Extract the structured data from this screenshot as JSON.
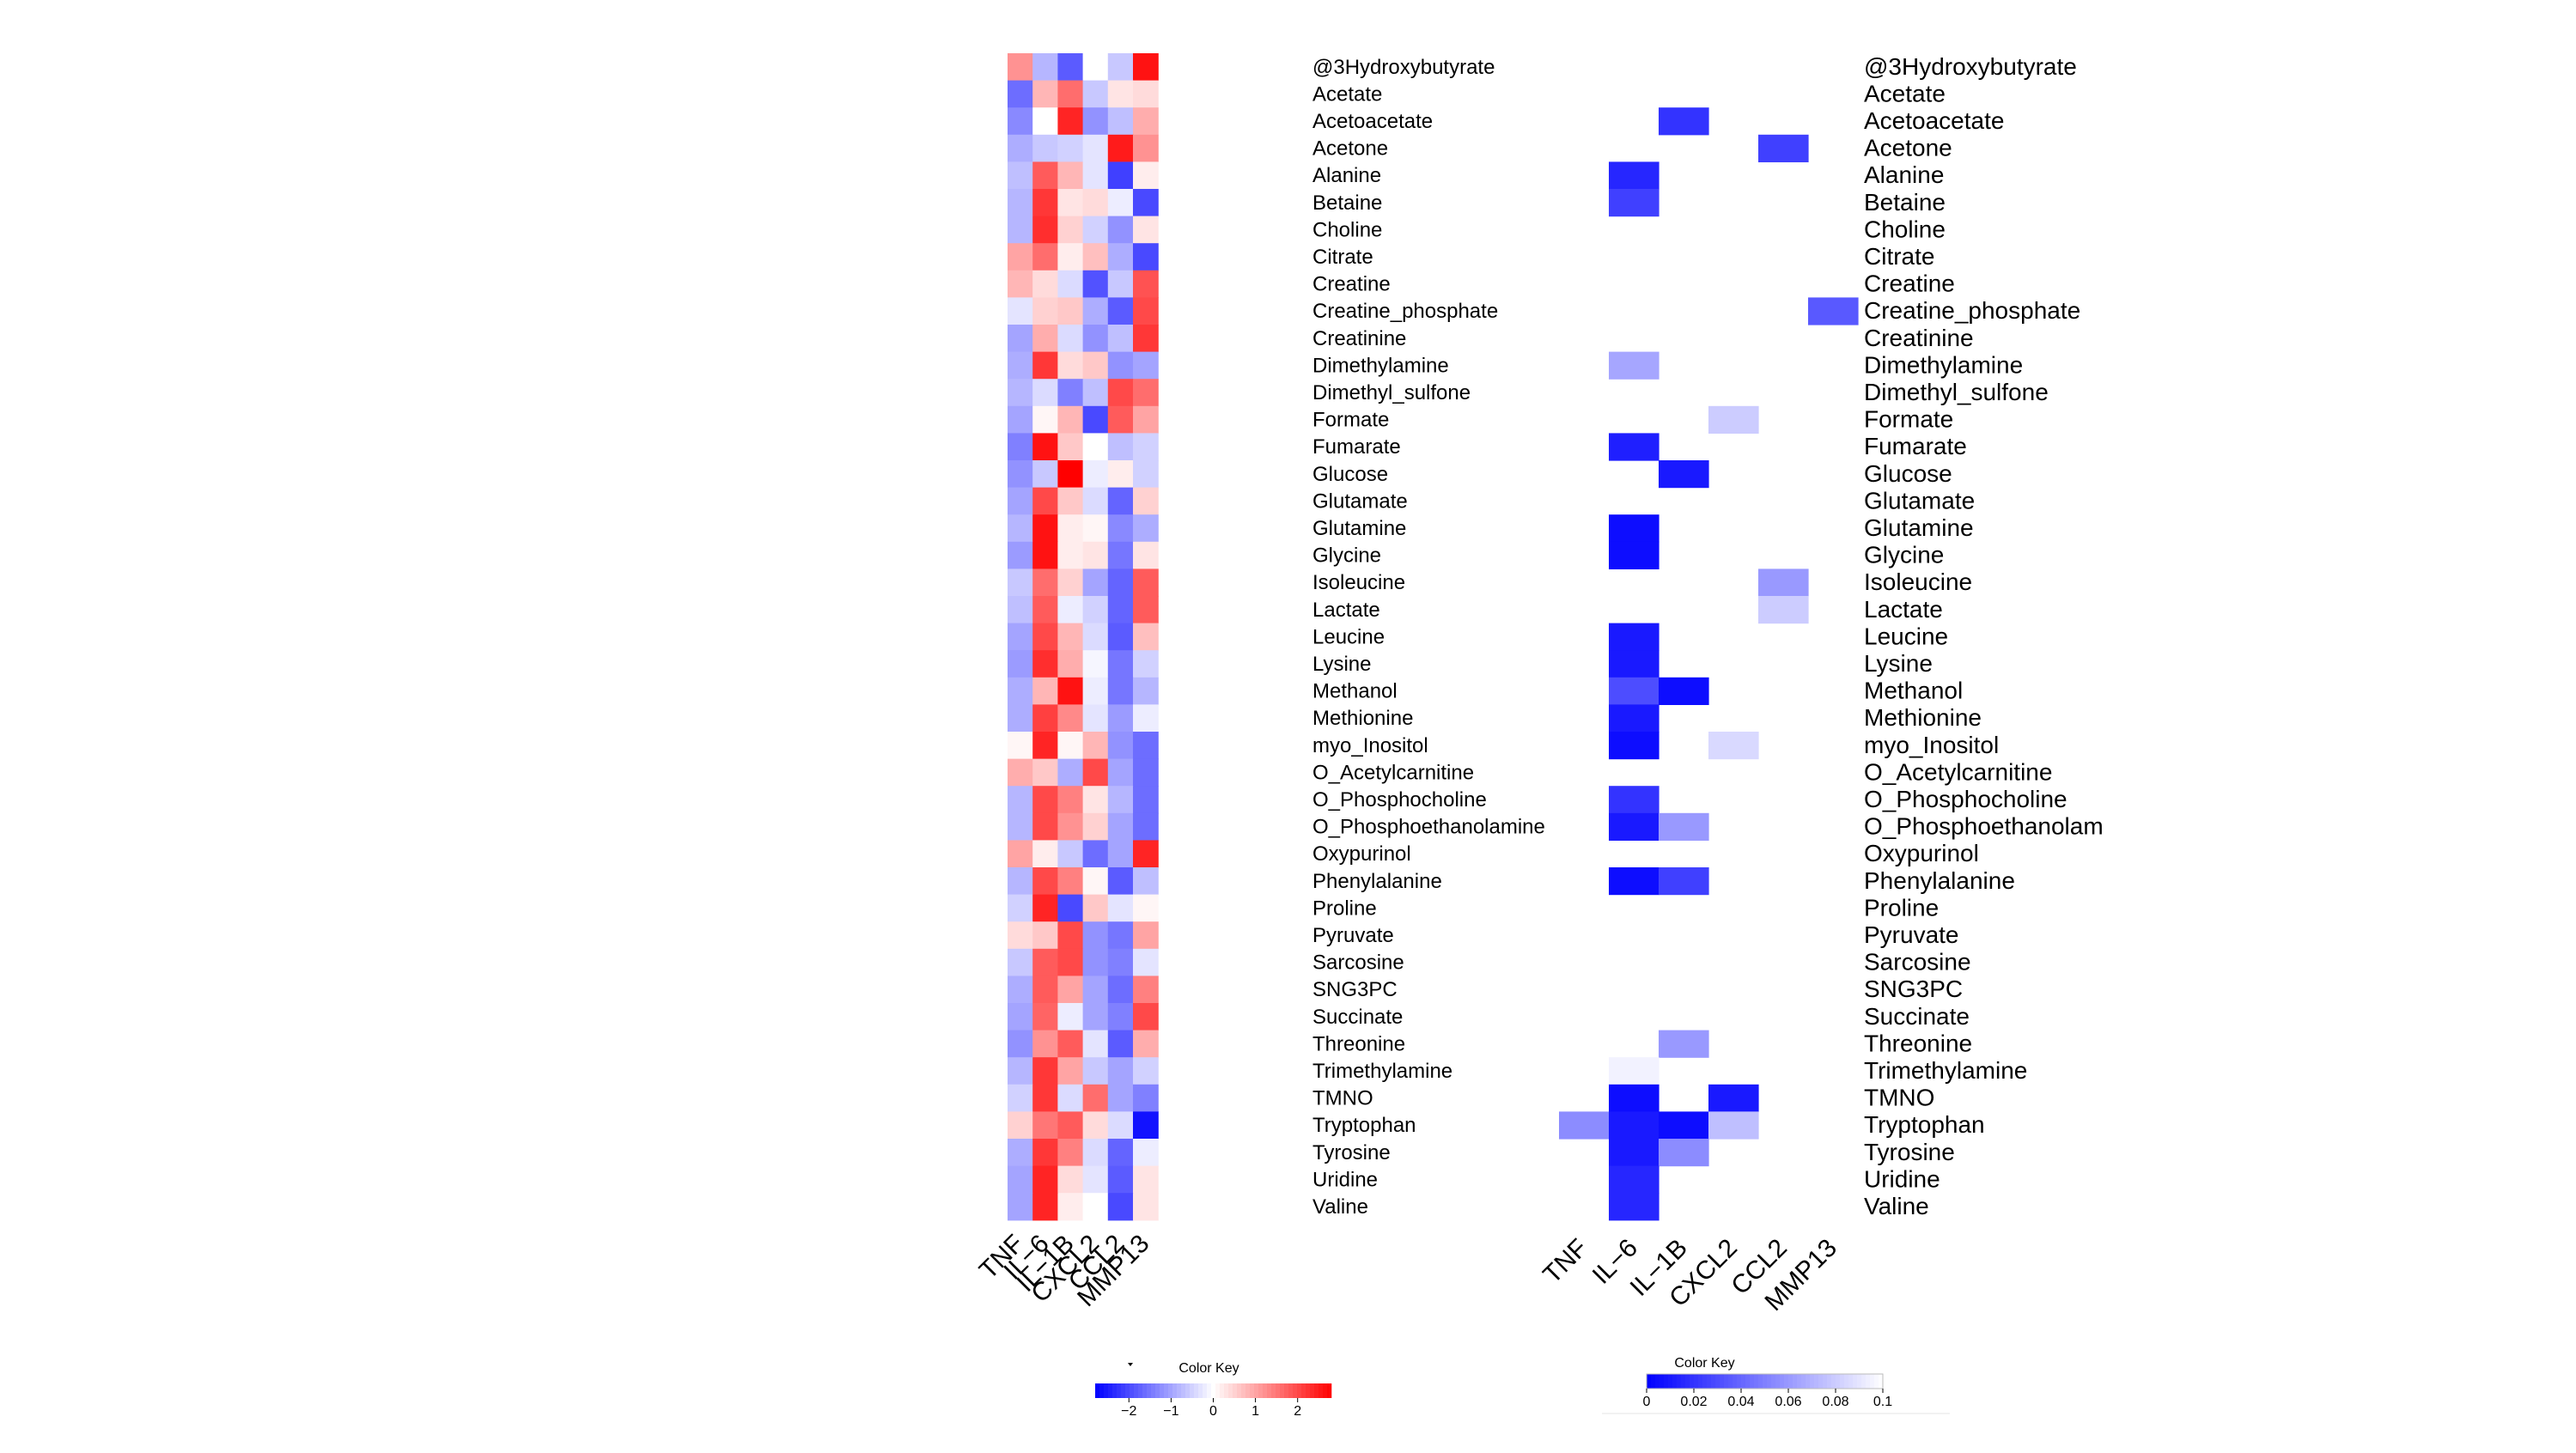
{
  "chart_data": [
    {
      "type": "heatmap",
      "columns": [
        "TNF",
        "IL−6",
        "IL−1B",
        "CXCL2",
        "CCL2",
        "MMP13"
      ],
      "rows": [
        "@3Hydroxybutyrate",
        "Acetate",
        "Acetoacetate",
        "Acetone",
        "Alanine",
        "Betaine",
        "Choline",
        "Citrate",
        "Creatine",
        "Creatine_phosphate",
        "Creatinine",
        "Dimethylamine",
        "Dimethyl_sulfone",
        "Formate",
        "Fumarate",
        "Glucose",
        "Glutamate",
        "Glutamine",
        "Glycine",
        "Isoleucine",
        "Lactate",
        "Leucine",
        "Lysine",
        "Methanol",
        "Methionine",
        "myo_Inositol",
        "O_Acetylcarnitine",
        "O_Phosphocholine",
        "O_Phosphoethanolamine",
        "Oxypurinol",
        "Phenylalanine",
        "Proline",
        "Pyruvate",
        "Sarcosine",
        "SNG3PC",
        "Succinate",
        "Threonine",
        "Trimethylamine",
        "TMNO",
        "Tryptophan",
        "Tyrosine",
        "Uridine",
        "Valine"
      ],
      "values": [
        [
          1.2,
          -0.8,
          -1.8,
          0.0,
          -0.6,
          2.6
        ],
        [
          -1.6,
          0.8,
          1.6,
          -0.6,
          0.3,
          0.4
        ],
        [
          -1.3,
          0.0,
          2.4,
          -1.2,
          -0.7,
          0.9
        ],
        [
          -0.9,
          -0.6,
          -0.5,
          -0.3,
          2.5,
          1.2
        ],
        [
          -0.7,
          1.8,
          0.8,
          -0.3,
          -2.1,
          0.2
        ],
        [
          -0.8,
          2.2,
          0.3,
          0.4,
          -0.2,
          -2.0
        ],
        [
          -0.8,
          2.3,
          0.5,
          -0.5,
          -1.2,
          0.3
        ],
        [
          1.0,
          1.6,
          0.2,
          0.7,
          -0.9,
          -2.0
        ],
        [
          0.8,
          0.4,
          -0.4,
          -1.9,
          -0.6,
          1.9
        ],
        [
          -0.3,
          0.5,
          0.6,
          -0.9,
          -1.8,
          2.0
        ],
        [
          -1.0,
          0.9,
          -0.4,
          -1.2,
          -0.7,
          2.2
        ],
        [
          -0.9,
          2.2,
          0.4,
          0.6,
          -1.2,
          -1.0
        ],
        [
          -0.8,
          -0.4,
          -1.4,
          -0.7,
          2.0,
          1.6
        ],
        [
          -1.0,
          0.1,
          0.8,
          -2.0,
          1.8,
          1.0
        ],
        [
          -1.4,
          2.6,
          0.6,
          0.0,
          -0.7,
          -0.5
        ],
        [
          -1.2,
          -0.6,
          2.8,
          -0.2,
          0.2,
          -0.5
        ],
        [
          -1.0,
          2.0,
          0.6,
          -0.4,
          -1.7,
          0.5
        ],
        [
          -0.8,
          2.6,
          0.2,
          0.1,
          -1.3,
          -0.9
        ],
        [
          -1.1,
          2.6,
          0.2,
          0.3,
          -1.5,
          0.3
        ],
        [
          -0.6,
          1.6,
          0.5,
          -1.0,
          -1.7,
          1.8
        ],
        [
          -0.7,
          1.8,
          -0.2,
          -0.5,
          -1.7,
          1.8
        ],
        [
          -1.0,
          2.0,
          0.8,
          -0.4,
          -1.8,
          0.7
        ],
        [
          -1.1,
          2.3,
          0.9,
          -0.1,
          -1.5,
          -0.5
        ],
        [
          -0.9,
          0.8,
          2.6,
          -0.2,
          -1.5,
          -0.8
        ],
        [
          -0.9,
          2.1,
          1.3,
          -0.3,
          -1.1,
          -0.2
        ],
        [
          0.1,
          2.4,
          0.1,
          0.8,
          -1.2,
          -1.6
        ],
        [
          0.9,
          0.6,
          -0.9,
          2.0,
          -1.0,
          -1.6
        ],
        [
          -0.8,
          2.0,
          1.4,
          0.3,
          -0.8,
          -1.6
        ],
        [
          -0.8,
          2.0,
          1.2,
          0.5,
          -1.0,
          -1.6
        ],
        [
          1.0,
          0.2,
          -0.6,
          -1.6,
          -1.0,
          2.4
        ],
        [
          -0.8,
          2.0,
          1.4,
          0.1,
          -1.8,
          -0.7
        ],
        [
          -0.5,
          2.4,
          -2.0,
          0.6,
          -0.3,
          0.1
        ],
        [
          0.4,
          0.6,
          2.0,
          -1.2,
          -1.5,
          1.0
        ],
        [
          -0.6,
          1.8,
          2.0,
          -1.2,
          -1.4,
          -0.3
        ],
        [
          -0.9,
          1.8,
          1.0,
          -1.0,
          -1.6,
          1.4
        ],
        [
          -1.0,
          1.7,
          -0.2,
          -1.0,
          -1.4,
          2.0
        ],
        [
          -1.2,
          1.2,
          1.8,
          -0.3,
          -1.8,
          0.9
        ],
        [
          -0.8,
          2.2,
          1.0,
          -0.6,
          -1.0,
          -0.5
        ],
        [
          -0.5,
          2.2,
          -0.4,
          1.6,
          -1.0,
          -1.4
        ],
        [
          0.5,
          1.5,
          1.8,
          0.4,
          -0.4,
          -2.6
        ],
        [
          -0.9,
          2.2,
          1.4,
          -0.4,
          -1.7,
          -0.2
        ],
        [
          -1.0,
          2.4,
          0.4,
          -0.3,
          -1.8,
          0.3
        ],
        [
          -1.0,
          2.4,
          0.2,
          0.0,
          -2.0,
          0.3
        ]
      ],
      "color_key": {
        "title": "Color Key",
        "ticks": [
          "−2",
          "−1",
          "0",
          "1",
          "2"
        ],
        "range": [
          -2.8,
          2.8
        ],
        "low_color": "#0000ff",
        "mid_color": "#ffffff",
        "high_color": "#ff0000"
      }
    },
    {
      "type": "heatmap",
      "columns": [
        "TNF",
        "IL−6",
        "IL−1B",
        "CXCL2",
        "CCL2",
        "MMP13"
      ],
      "rows": [
        "@3Hydroxybutyrate",
        "Acetate",
        "Acetoacetate",
        "Acetone",
        "Alanine",
        "Betaine",
        "Choline",
        "Citrate",
        "Creatine",
        "Creatine_phosphate",
        "Creatinine",
        "Dimethylamine",
        "Dimethyl_sulfone",
        "Formate",
        "Fumarate",
        "Glucose",
        "Glutamate",
        "Glutamine",
        "Glycine",
        "Isoleucine",
        "Lactate",
        "Leucine",
        "Lysine",
        "Methanol",
        "Methionine",
        "myo_Inositol",
        "O_Acetylcarnitine",
        "O_Phosphocholine",
        "O_Phosphoethanolam",
        "Oxypurinol",
        "Phenylalanine",
        "Proline",
        "Pyruvate",
        "Sarcosine",
        "SNG3PC",
        "Succinate",
        "Threonine",
        "Trimethylamine",
        "TMNO",
        "Tryptophan",
        "Tyrosine",
        "Uridine",
        "Valine"
      ],
      "values": [
        [
          null,
          null,
          null,
          null,
          null,
          null
        ],
        [
          null,
          null,
          null,
          null,
          null,
          null
        ],
        [
          null,
          null,
          0.02,
          null,
          null,
          null
        ],
        [
          null,
          null,
          null,
          null,
          0.025,
          null
        ],
        [
          null,
          0.015,
          null,
          null,
          null,
          null
        ],
        [
          null,
          0.025,
          null,
          null,
          null,
          null
        ],
        [
          null,
          null,
          null,
          null,
          null,
          null
        ],
        [
          null,
          null,
          null,
          null,
          null,
          null
        ],
        [
          null,
          null,
          null,
          null,
          null,
          null
        ],
        [
          null,
          null,
          null,
          null,
          null,
          0.035
        ],
        [
          null,
          null,
          null,
          null,
          null,
          null
        ],
        [
          null,
          0.065,
          null,
          null,
          null,
          null
        ],
        [
          null,
          null,
          null,
          null,
          null,
          null
        ],
        [
          null,
          null,
          null,
          0.08,
          null,
          null
        ],
        [
          null,
          0.012,
          null,
          null,
          null,
          null
        ],
        [
          null,
          null,
          0.01,
          null,
          null,
          null
        ],
        [
          null,
          null,
          null,
          null,
          null,
          null
        ],
        [
          null,
          0.005,
          null,
          null,
          null,
          null
        ],
        [
          null,
          0.005,
          null,
          null,
          null,
          null
        ],
        [
          null,
          null,
          null,
          null,
          0.06,
          null
        ],
        [
          null,
          null,
          null,
          null,
          0.08,
          null
        ],
        [
          null,
          0.01,
          null,
          null,
          null,
          null
        ],
        [
          null,
          0.01,
          null,
          null,
          null,
          null
        ],
        [
          null,
          0.03,
          0.005,
          null,
          null,
          null
        ],
        [
          null,
          0.01,
          null,
          null,
          null,
          null
        ],
        [
          null,
          0.005,
          null,
          0.085,
          null,
          null
        ],
        [
          null,
          null,
          null,
          null,
          null,
          null
        ],
        [
          null,
          0.02,
          null,
          null,
          null,
          null
        ],
        [
          null,
          0.01,
          0.06,
          null,
          null,
          null
        ],
        [
          null,
          null,
          null,
          null,
          null,
          null
        ],
        [
          null,
          0.005,
          0.025,
          null,
          null,
          null
        ],
        [
          null,
          null,
          null,
          null,
          null,
          null
        ],
        [
          null,
          null,
          null,
          null,
          null,
          null
        ],
        [
          null,
          null,
          null,
          null,
          null,
          null
        ],
        [
          null,
          null,
          null,
          null,
          null,
          null
        ],
        [
          null,
          null,
          null,
          null,
          null,
          null
        ],
        [
          null,
          null,
          0.06,
          null,
          null,
          null
        ],
        [
          null,
          0.095,
          null,
          null,
          null,
          null
        ],
        [
          null,
          0.005,
          null,
          0.01,
          null,
          null
        ],
        [
          0.055,
          0.01,
          0.005,
          0.075,
          null,
          null
        ],
        [
          null,
          0.01,
          0.055,
          null,
          null,
          null
        ],
        [
          null,
          0.015,
          null,
          null,
          null,
          null
        ],
        [
          null,
          0.015,
          null,
          null,
          null,
          null
        ]
      ],
      "color_key": {
        "title": "Color Key",
        "ticks": [
          "0",
          "0.02",
          "0.04",
          "0.06",
          "0.08",
          "0.1"
        ],
        "range": [
          0,
          0.1
        ],
        "low_color": "#0000ff",
        "high_color": "#ffffff"
      }
    }
  ]
}
